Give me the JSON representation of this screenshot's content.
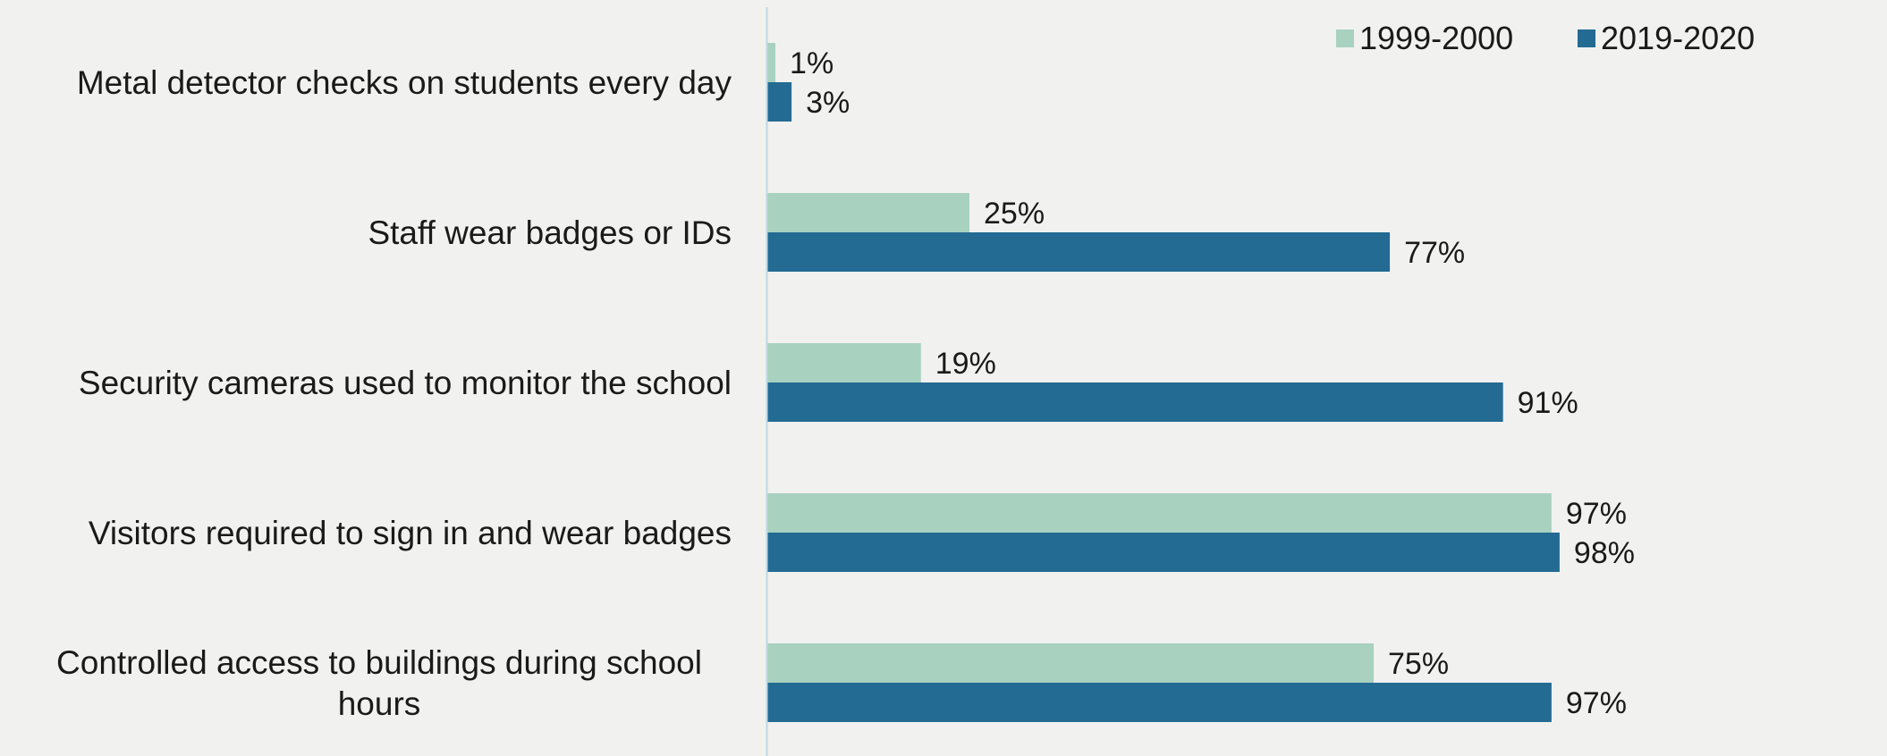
{
  "chart_data": {
    "type": "bar",
    "orientation": "horizontal",
    "categories": [
      "Metal detector checks on students every day",
      "Staff wear badges or IDs",
      "Security cameras used to monitor the school",
      "Visitors required to sign in and wear badges",
      "Controlled access to buildings during school hours"
    ],
    "series": [
      {
        "name": "1999-2000",
        "color": "#a8d1c0",
        "values": [
          1,
          25,
          19,
          97,
          75
        ],
        "labels": [
          "1%",
          "25%",
          "19%",
          "97%",
          "75%"
        ]
      },
      {
        "name": "2019-2020",
        "color": "#236b93",
        "values": [
          3,
          77,
          91,
          98,
          97
        ],
        "labels": [
          "3%",
          "77%",
          "91%",
          "98%",
          "97%"
        ]
      }
    ],
    "xlim": [
      0,
      100
    ],
    "grid": false,
    "legend_position": "top-right",
    "axis_line_color": "#bcd9e4"
  }
}
